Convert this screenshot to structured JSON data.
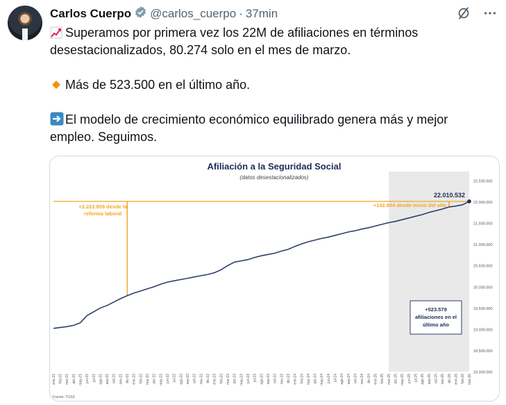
{
  "author": {
    "name": "Carlos Cuerpo",
    "handle": "@carlos_cuerpo",
    "separator": "·",
    "time": "37min"
  },
  "tweet": {
    "line1": "Superamos por primera vez los 22M de afiliaciones en términos desestacionalizados, 80.274 solo en el mes de marzo.",
    "line2": "Más de 523.500 en el último año.",
    "line3": "El modelo de crecimiento económico equilibrado genera más y mejor empleo. Seguimos."
  },
  "icons": {
    "verified": "verified-badge-icon",
    "grok": "grok-icon",
    "more": "more-icon",
    "chart": "chart-increasing-icon",
    "diamond": "orange-diamond-icon",
    "arrow": "right-arrow-icon"
  },
  "colors": {
    "line": "#2f3e6b",
    "accent": "#f5a623",
    "verified": "#829aab"
  },
  "chart_data": {
    "type": "line",
    "title": "Afiliación a la Seguridad Social",
    "subtitle": "(datos desestacionalizados)",
    "source": "Fuente: TGSS",
    "ylim": [
      18000000,
      22500000
    ],
    "yticks": [
      "18.000.000",
      "18.500.000",
      "19.000.000",
      "19.500.000",
      "20.000.000",
      "20.500.000",
      "21.000.000",
      "21.500.000",
      "22.000.000",
      "22.500.000"
    ],
    "x": [
      "ene-21",
      "feb-21",
      "mar-21",
      "abr-21",
      "may-21",
      "jun-21",
      "jul-21",
      "ago-21",
      "sep-21",
      "oct-21",
      "nov-21",
      "dic-21",
      "ene-22",
      "feb-22",
      "mar-22",
      "abr-22",
      "may-22",
      "jun-22",
      "jul-22",
      "ago-22",
      "sep-22",
      "oct-22",
      "nov-22",
      "dic-22",
      "ene-23",
      "feb-23",
      "mar-23",
      "abr-23",
      "may-23",
      "jun-23",
      "jul-23",
      "ago-23",
      "sep-23",
      "oct-23",
      "nov-23",
      "dic-23",
      "ene-24",
      "feb-24",
      "mar-24",
      "abr-24",
      "may-24",
      "jun-24",
      "jul-24",
      "ago-24",
      "sep-24",
      "oct-24",
      "nov-24",
      "dic-24",
      "ene-25",
      "feb-25",
      "mar-25",
      "abr-25",
      "may-25",
      "jun-25",
      "jul-25",
      "ago-25",
      "sep-25",
      "oct-25",
      "nov-25",
      "dic-25",
      "ene-26",
      "feb-26",
      "mar-26"
    ],
    "series": [
      {
        "values": [
          19020000,
          19040000,
          19060000,
          19090000,
          19150000,
          19320000,
          19410000,
          19500000,
          19560000,
          19640000,
          19720000,
          19790000,
          19850000,
          19900000,
          19950000,
          20000000,
          20060000,
          20110000,
          20140000,
          20170000,
          20200000,
          20230000,
          20260000,
          20290000,
          20330000,
          20400000,
          20500000,
          20580000,
          20610000,
          20640000,
          20690000,
          20730000,
          20760000,
          20790000,
          20840000,
          20880000,
          20950000,
          21010000,
          21060000,
          21100000,
          21140000,
          21170000,
          21210000,
          21250000,
          21290000,
          21320000,
          21360000,
          21390000,
          21430000,
          21470000,
          21510000,
          21540000,
          21580000,
          21620000,
          21660000,
          21700000,
          21750000,
          21790000,
          21830000,
          21880000,
          21900000,
          21930000,
          22010532
        ]
      }
    ],
    "annotations": {
      "reform": "+2.222.859 desde la reforma laboral",
      "reform_x": "dic-21",
      "reform_value": 19787673,
      "last_value": "22.010.532",
      "since_start": "+142.804 desde inicio del año",
      "since_start_x": "dic-25",
      "since_start_value": 21867728,
      "box_line1": "+523.579",
      "box_line2": "afiliaciones en el",
      "box_line3": "último año",
      "shaded_from": "mar-25",
      "shaded_to": "mar-26"
    },
    "grid": false
  }
}
